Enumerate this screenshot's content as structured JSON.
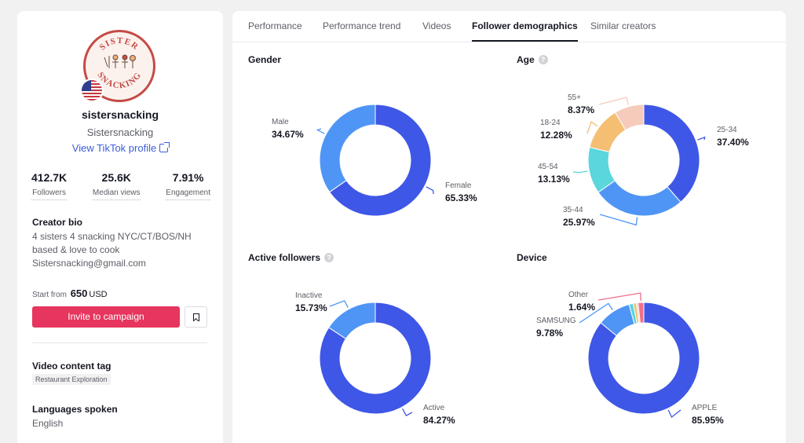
{
  "profile": {
    "username": "sistersnacking",
    "nickname": "Sistersnacking",
    "tiktok_link": "View TikTok profile",
    "avatar_text_top": "SISTER",
    "avatar_text_bottom": "SNACKING",
    "stats": [
      {
        "value": "412.7K",
        "label": "Followers"
      },
      {
        "value": "25.6K",
        "label": "Median views"
      },
      {
        "value": "7.91%",
        "label": "Engagement"
      }
    ],
    "bio_title": "Creator bio",
    "bio": "4 sisters 4 snacking NYC/CT/BOS/NH\nbased & love to cook\nSistersnacking@gmail.com",
    "price_prefix": "Start from",
    "price_value": "650",
    "price_currency": "USD",
    "invite_label": "Invite to campaign",
    "save_icon": "bookmark-icon",
    "tag_title": "Video content tag",
    "tag": "Restaurant Exploration",
    "lang_title": "Languages spoken",
    "lang": "English"
  },
  "tabs": [
    {
      "label": "Performance",
      "active": false
    },
    {
      "label": "Performance trend",
      "active": false
    },
    {
      "label": "Videos",
      "active": false
    },
    {
      "label": "Follower demographics",
      "active": true
    },
    {
      "label": "Similar creators",
      "active": false
    }
  ],
  "cards": {
    "gender": {
      "title": "Gender"
    },
    "age": {
      "title": "Age"
    },
    "active": {
      "title": "Active followers"
    },
    "device": {
      "title": "Device"
    }
  },
  "chart_data": [
    {
      "type": "pie",
      "title": "Gender",
      "slices": [
        {
          "label": "Female",
          "value": 65.33,
          "display": "65.33%",
          "color": "#3f57e6"
        },
        {
          "label": "Male",
          "value": 34.67,
          "display": "34.67%",
          "color": "#4f95f5"
        }
      ]
    },
    {
      "type": "pie",
      "title": "Age",
      "slices": [
        {
          "label": "25-34",
          "value": 37.4,
          "display": "37.40%",
          "color": "#3f57e6"
        },
        {
          "label": "35-44",
          "value": 25.97,
          "display": "25.97%",
          "color": "#4f95f5"
        },
        {
          "label": "45-54",
          "value": 13.13,
          "display": "13.13%",
          "color": "#5ad6dc"
        },
        {
          "label": "18-24",
          "value": 12.28,
          "display": "12.28%",
          "color": "#f4bf73"
        },
        {
          "label": "55+",
          "value": 8.37,
          "display": "8.37%",
          "color": "#f6cbbb"
        }
      ]
    },
    {
      "type": "pie",
      "title": "Active followers",
      "slices": [
        {
          "label": "Active",
          "value": 84.27,
          "display": "84.27%",
          "color": "#3f57e6"
        },
        {
          "label": "Inactive",
          "value": 15.73,
          "display": "15.73%",
          "color": "#4f95f5"
        }
      ]
    },
    {
      "type": "pie",
      "title": "Device",
      "slices": [
        {
          "label": "APPLE",
          "value": 85.95,
          "display": "85.95%",
          "color": "#3f57e6"
        },
        {
          "label": "SAMSUNG",
          "value": 9.78,
          "display": "9.78%",
          "color": "#4f95f5"
        },
        {
          "label": "",
          "value": 1.2,
          "display": "",
          "color": "#5ad6dc"
        },
        {
          "label": "",
          "value": 0.9,
          "display": "",
          "color": "#f4bf73"
        },
        {
          "label": "",
          "value": 0.53,
          "display": "",
          "color": "#f6cbbb"
        },
        {
          "label": "Other",
          "value": 1.64,
          "display": "1.64%",
          "color": "#ef6f8a"
        }
      ]
    }
  ]
}
